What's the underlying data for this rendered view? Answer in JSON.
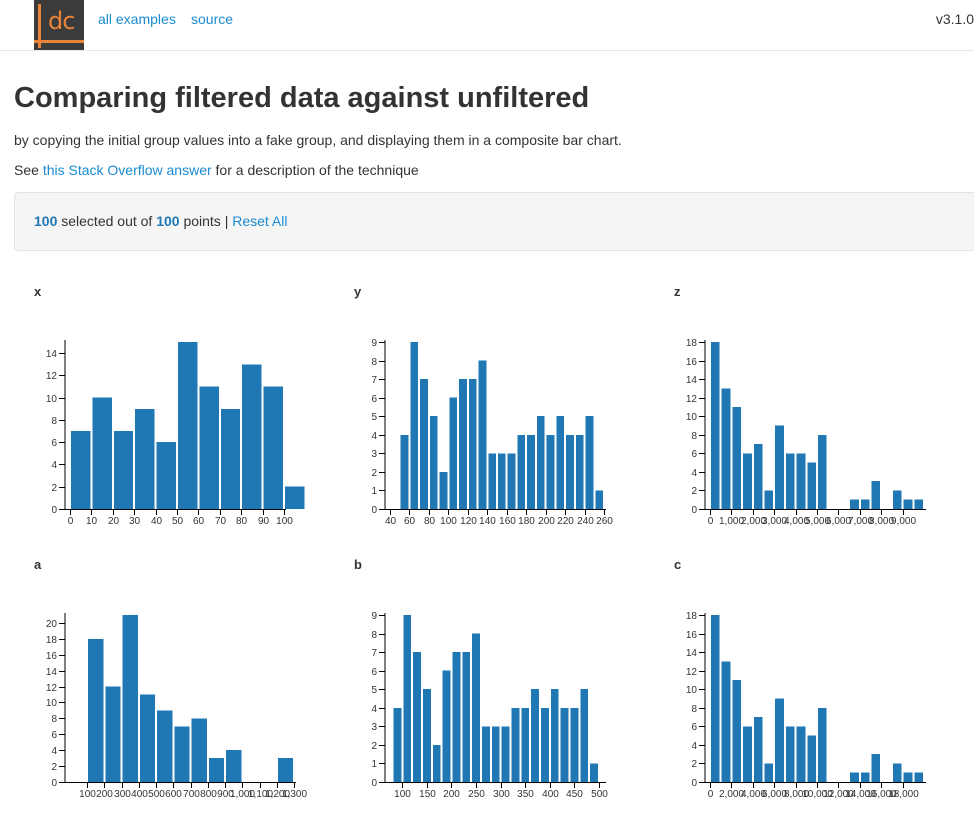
{
  "header": {
    "logo_text": "dc",
    "links": [
      "all examples",
      "source"
    ],
    "version": "v3.1.0"
  },
  "page": {
    "title": "Comparing filtered data against unfiltered",
    "subtitle": "by copying the initial group values into a fake group, and displaying them in a composite bar chart.",
    "see_prefix": "See ",
    "see_link": "this Stack Overflow answer",
    "see_suffix": " for a description of the technique"
  },
  "data_count": {
    "selected": "100",
    "selected_label": " selected out of ",
    "total": "100",
    "total_label": " points | ",
    "reset_label": "Reset All"
  },
  "colors": {
    "bar": "#1f77b4",
    "link": "#1a8bd1"
  },
  "chart_data": [
    {
      "id": "x",
      "type": "bar",
      "title": "x",
      "xlim": [
        0,
        100
      ],
      "ylim": [
        0,
        15
      ],
      "x_ticks": [
        0,
        10,
        20,
        30,
        40,
        50,
        60,
        70,
        80,
        90,
        100
      ],
      "x_tick_labels": [
        "0",
        "10",
        "20",
        "30",
        "40",
        "50",
        "60",
        "70",
        "80",
        "90",
        "100"
      ],
      "y_ticks": [
        0,
        2,
        4,
        6,
        8,
        10,
        12,
        14
      ],
      "bin_width": 10,
      "x": [
        0,
        10,
        20,
        30,
        40,
        50,
        60,
        70,
        80,
        90,
        100
      ],
      "values": [
        7,
        10,
        7,
        9,
        6,
        15,
        11,
        9,
        13,
        11,
        2
      ]
    },
    {
      "id": "y",
      "type": "bar",
      "title": "y",
      "xlim": [
        40,
        260
      ],
      "ylim": [
        0,
        9
      ],
      "x_ticks": [
        40,
        60,
        80,
        100,
        120,
        140,
        160,
        180,
        200,
        220,
        240,
        260
      ],
      "x_tick_labels": [
        "40",
        "60",
        "80",
        "100",
        "120",
        "140",
        "160",
        "180",
        "200",
        "220",
        "240",
        "260"
      ],
      "y_ticks": [
        0,
        1,
        2,
        3,
        4,
        5,
        6,
        7,
        8,
        9
      ],
      "bin_width": 10,
      "x": [
        50,
        60,
        70,
        80,
        90,
        100,
        110,
        120,
        130,
        140,
        150,
        160,
        170,
        180,
        190,
        200,
        210,
        220,
        230,
        240,
        250
      ],
      "values": [
        4,
        9,
        7,
        5,
        2,
        6,
        7,
        7,
        8,
        3,
        3,
        3,
        4,
        4,
        5,
        4,
        5,
        4,
        4,
        5,
        1
      ]
    },
    {
      "id": "z",
      "type": "bar",
      "title": "z",
      "xlim": [
        0,
        10000
      ],
      "ylim": [
        0,
        18
      ],
      "x_ticks": [
        0,
        1000,
        2000,
        3000,
        4000,
        5000,
        6000,
        7000,
        8000,
        9000
      ],
      "x_tick_labels": [
        "0",
        "1,000",
        "2,000",
        "3,000",
        "4,000",
        "5,000",
        "6,000",
        "7,000",
        "8,000",
        "9,000"
      ],
      "y_ticks": [
        0,
        2,
        4,
        6,
        8,
        10,
        12,
        14,
        16,
        18
      ],
      "bin_width": 500,
      "x": [
        0,
        500,
        1000,
        1500,
        2000,
        2500,
        3000,
        3500,
        4000,
        4500,
        5000,
        5500,
        6000,
        6500,
        7000,
        7500,
        8000,
        8500,
        9000,
        9500
      ],
      "values": [
        18,
        13,
        11,
        6,
        7,
        2,
        9,
        6,
        6,
        5,
        8,
        0,
        0,
        1,
        1,
        3,
        0,
        2,
        1,
        1
      ]
    },
    {
      "id": "a",
      "type": "bar",
      "title": "a",
      "xlim": [
        0,
        1300
      ],
      "ylim": [
        0,
        21
      ],
      "x_ticks": [
        100,
        200,
        300,
        400,
        500,
        600,
        700,
        800,
        900,
        1000,
        1100,
        1200,
        1300
      ],
      "x_tick_labels": [
        "100",
        "200",
        "300",
        "400",
        "500",
        "600",
        "700",
        "800",
        "900",
        "1,000",
        "1,100",
        "1,200",
        "1,300"
      ],
      "y_ticks": [
        0,
        2,
        4,
        6,
        8,
        10,
        12,
        14,
        16,
        18,
        20
      ],
      "bin_width": 100,
      "x": [
        100,
        200,
        300,
        400,
        500,
        600,
        700,
        800,
        900,
        1000,
        1100,
        1200
      ],
      "values": [
        18,
        12,
        21,
        11,
        9,
        7,
        8,
        3,
        4,
        0,
        0,
        3
      ]
    },
    {
      "id": "b",
      "type": "bar",
      "title": "b",
      "xlim": [
        75,
        510
      ],
      "ylim": [
        0,
        9
      ],
      "x_ticks": [
        100,
        150,
        200,
        250,
        300,
        350,
        400,
        450,
        500
      ],
      "x_tick_labels": [
        "100",
        "150",
        "200",
        "250",
        "300",
        "350",
        "400",
        "450",
        "500"
      ],
      "y_ticks": [
        0,
        1,
        2,
        3,
        4,
        5,
        6,
        7,
        8,
        9
      ],
      "bin_width": 20,
      "x": [
        80,
        100,
        120,
        140,
        160,
        180,
        200,
        220,
        240,
        260,
        280,
        300,
        320,
        340,
        360,
        380,
        400,
        420,
        440,
        460,
        480
      ],
      "values": [
        4,
        9,
        7,
        5,
        2,
        6,
        7,
        7,
        8,
        3,
        3,
        3,
        4,
        4,
        5,
        4,
        5,
        4,
        4,
        5,
        1
      ]
    },
    {
      "id": "c",
      "type": "bar",
      "title": "c",
      "xlim": [
        0,
        20000
      ],
      "ylim": [
        0,
        18
      ],
      "x_ticks": [
        0,
        2000,
        4000,
        6000,
        8000,
        10000,
        12000,
        14000,
        16000,
        18000
      ],
      "x_tick_labels": [
        "0",
        "2,000",
        "4,000",
        "6,000",
        "8,000",
        "10,000",
        "12,000",
        "14,000",
        "16,000",
        "18,000"
      ],
      "y_ticks": [
        0,
        2,
        4,
        6,
        8,
        10,
        12,
        14,
        16,
        18
      ],
      "bin_width": 1000,
      "x": [
        0,
        1000,
        2000,
        3000,
        4000,
        5000,
        6000,
        7000,
        8000,
        9000,
        10000,
        11000,
        12000,
        13000,
        14000,
        15000,
        16000,
        17000,
        18000,
        19000
      ],
      "values": [
        18,
        13,
        11,
        6,
        7,
        2,
        9,
        6,
        6,
        5,
        8,
        0,
        0,
        1,
        1,
        3,
        0,
        2,
        1,
        1
      ]
    }
  ]
}
